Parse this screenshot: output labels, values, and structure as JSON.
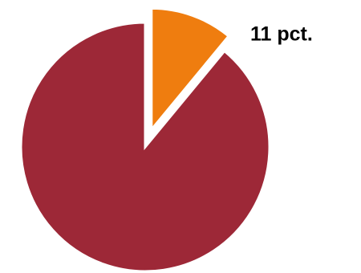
{
  "chart_data": {
    "type": "pie",
    "values": [
      11,
      89
    ],
    "value_labels": [
      "11 pct.",
      null
    ],
    "colors": [
      "#ef7d0f",
      "#9d2837"
    ],
    "exploded": [
      true,
      false
    ]
  }
}
